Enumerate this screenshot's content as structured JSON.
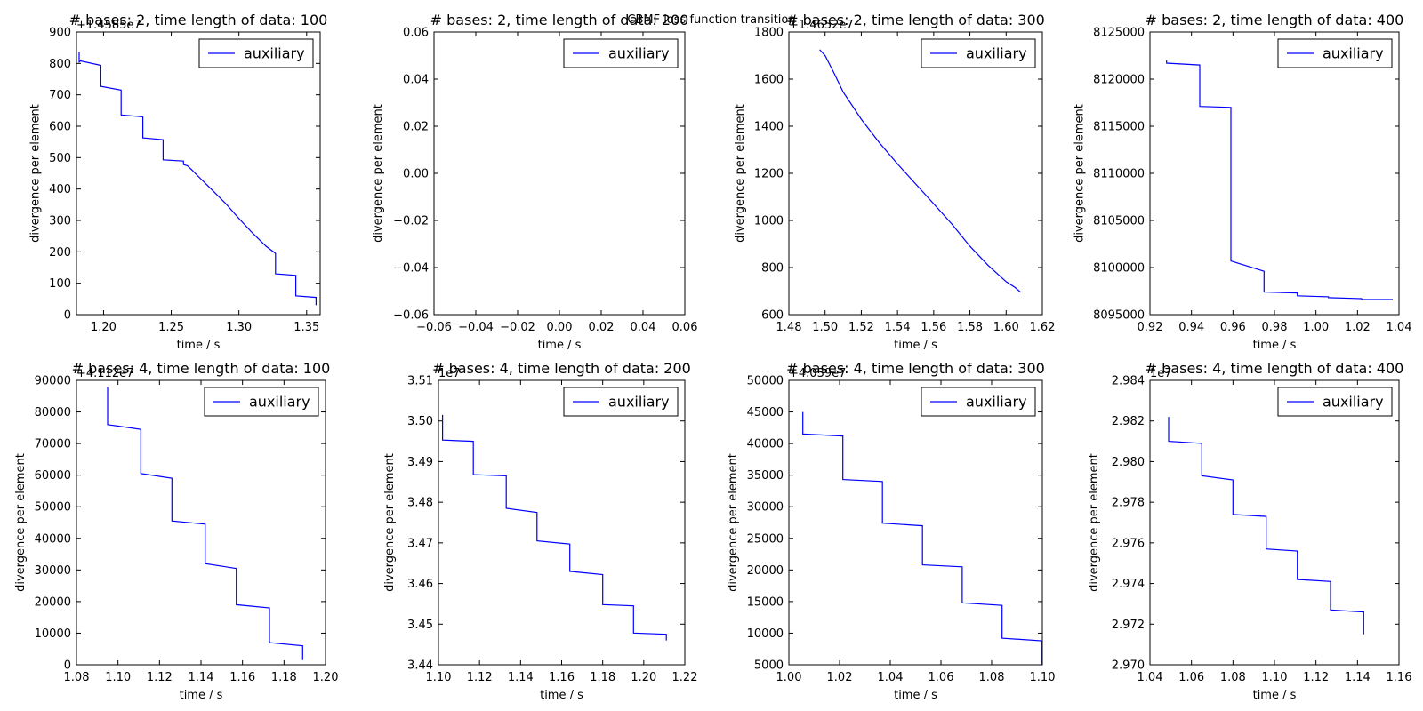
{
  "figure": {
    "suptitle": "CBMF loss function transition"
  },
  "chart_data": [
    {
      "type": "line",
      "title": "# bases: 2, time length of data: 100",
      "xlabel": "time / s",
      "ylabel": "divergence per element",
      "xlim": [
        1.18,
        1.36
      ],
      "ylim": [
        0,
        900
      ],
      "xticks": [
        1.2,
        1.25,
        1.3,
        1.35
      ],
      "xtick_labels": [
        "1.20",
        "1.25",
        "1.30",
        "1.35"
      ],
      "yticks": [
        0,
        100,
        200,
        300,
        400,
        500,
        600,
        700,
        800,
        900
      ],
      "ytick_labels": [
        "0",
        "100",
        "200",
        "300",
        "400",
        "500",
        "600",
        "700",
        "800",
        "900"
      ],
      "offset_text": "+1.4585e7",
      "legend": {
        "placement": "top-right"
      },
      "series": [
        {
          "name": "auxiliary",
          "color": "#0000ff",
          "x": [
            1.182,
            1.182,
            1.183,
            1.198,
            1.198,
            1.213,
            1.213,
            1.229,
            1.229,
            1.244,
            1.244,
            1.259,
            1.259,
            1.262,
            1.265,
            1.27,
            1.28,
            1.29,
            1.3,
            1.31,
            1.32,
            1.327,
            1.327,
            1.342,
            1.342,
            1.357,
            1.357
          ],
          "y": [
            835,
            805,
            808,
            794,
            727,
            715,
            636,
            630,
            563,
            557,
            493,
            489,
            478,
            474,
            462,
            440,
            398,
            355,
            306,
            260,
            218,
            195,
            130,
            125,
            60,
            55,
            30
          ]
        }
      ]
    },
    {
      "type": "line",
      "title": "# bases: 2, time length of data: 200",
      "xlabel": "time / s",
      "ylabel": "divergence per element",
      "xlim": [
        -0.06,
        0.06
      ],
      "ylim": [
        -0.06,
        0.06
      ],
      "xticks": [
        -0.06,
        -0.04,
        -0.02,
        0.0,
        0.02,
        0.04,
        0.06
      ],
      "xtick_labels": [
        "−0.06",
        "−0.04",
        "−0.02",
        "0.00",
        "0.02",
        "0.04",
        "0.06"
      ],
      "yticks": [
        -0.06,
        -0.04,
        -0.02,
        0.0,
        0.02,
        0.04,
        0.06
      ],
      "ytick_labels": [
        "−0.06",
        "−0.04",
        "−0.02",
        "0.00",
        "0.02",
        "0.04",
        "0.06"
      ],
      "offset_text": "",
      "legend": {
        "placement": "top-right"
      },
      "series": [
        {
          "name": "auxiliary",
          "color": "#0000ff",
          "x": [],
          "y": []
        }
      ]
    },
    {
      "type": "line",
      "title": "# bases: 2, time length of data: 300",
      "xlabel": "time / s",
      "ylabel": "divergence per element",
      "xlim": [
        1.48,
        1.62
      ],
      "ylim": [
        600,
        1800
      ],
      "xticks": [
        1.48,
        1.5,
        1.52,
        1.54,
        1.56,
        1.58,
        1.6,
        1.62
      ],
      "xtick_labels": [
        "1.48",
        "1.50",
        "1.52",
        "1.54",
        "1.56",
        "1.58",
        "1.60",
        "1.62"
      ],
      "yticks": [
        600,
        800,
        1000,
        1200,
        1400,
        1600,
        1800
      ],
      "ytick_labels": [
        "600",
        "800",
        "1000",
        "1200",
        "1400",
        "1600",
        "1800"
      ],
      "offset_text": "+1.4652e7",
      "legend": {
        "placement": "top-right"
      },
      "series": [
        {
          "name": "auxiliary",
          "color": "#0000ff",
          "x": [
            1.497,
            1.5,
            1.505,
            1.51,
            1.52,
            1.53,
            1.54,
            1.55,
            1.56,
            1.57,
            1.58,
            1.59,
            1.6,
            1.605,
            1.608
          ],
          "y": [
            1725,
            1700,
            1625,
            1545,
            1430,
            1330,
            1240,
            1155,
            1070,
            985,
            890,
            810,
            740,
            715,
            695
          ]
        }
      ]
    },
    {
      "type": "line",
      "title": "# bases: 2, time length of data: 400",
      "xlabel": "time / s",
      "ylabel": "divergence per element",
      "xlim": [
        0.92,
        1.04
      ],
      "ylim": [
        8095000,
        8125000
      ],
      "xticks": [
        0.92,
        0.94,
        0.96,
        0.98,
        1.0,
        1.02,
        1.04
      ],
      "xtick_labels": [
        "0.92",
        "0.94",
        "0.96",
        "0.98",
        "1.00",
        "1.02",
        "1.04"
      ],
      "yticks": [
        8095000,
        8100000,
        8105000,
        8110000,
        8115000,
        8120000,
        8125000
      ],
      "ytick_labels": [
        "8095000",
        "8100000",
        "8105000",
        "8110000",
        "8115000",
        "8120000",
        "8125000"
      ],
      "offset_text": "",
      "legend": {
        "placement": "top-right"
      },
      "series": [
        {
          "name": "auxiliary",
          "color": "#0000ff",
          "x": [
            0.928,
            0.928,
            0.944,
            0.944,
            0.959,
            0.959,
            0.975,
            0.975,
            0.991,
            0.991,
            1.006,
            1.006,
            1.022,
            1.022,
            1.037
          ],
          "y": [
            8122000,
            8121700,
            8121500,
            8117100,
            8117000,
            8100700,
            8099600,
            8097400,
            8097300,
            8097000,
            8096900,
            8096800,
            8096700,
            8096600,
            8096600
          ]
        }
      ]
    },
    {
      "type": "line",
      "title": "# bases: 4, time length of data: 100",
      "xlabel": "time / s",
      "ylabel": "divergence per element",
      "xlim": [
        1.08,
        1.2
      ],
      "ylim": [
        0,
        90000
      ],
      "xticks": [
        1.08,
        1.1,
        1.12,
        1.14,
        1.16,
        1.18,
        1.2
      ],
      "xtick_labels": [
        "1.08",
        "1.10",
        "1.12",
        "1.14",
        "1.16",
        "1.18",
        "1.20"
      ],
      "yticks": [
        0,
        10000,
        20000,
        30000,
        40000,
        50000,
        60000,
        70000,
        80000,
        90000
      ],
      "ytick_labels": [
        "0",
        "10000",
        "20000",
        "30000",
        "40000",
        "50000",
        "60000",
        "70000",
        "80000",
        "90000"
      ],
      "offset_text": "+4.112e7",
      "legend": {
        "placement": "top-right"
      },
      "series": [
        {
          "name": "auxiliary",
          "color": "#0000ff",
          "x": [
            1.095,
            1.095,
            1.111,
            1.111,
            1.126,
            1.126,
            1.142,
            1.142,
            1.157,
            1.157,
            1.173,
            1.173,
            1.189,
            1.189
          ],
          "y": [
            88000,
            76000,
            74500,
            60500,
            59000,
            45500,
            44500,
            32000,
            30500,
            19000,
            18000,
            7000,
            6000,
            1500
          ]
        }
      ]
    },
    {
      "type": "line",
      "title": "# bases: 4, time length of data: 200",
      "xlabel": "time / s",
      "ylabel": "divergence per element",
      "xlim": [
        1.1,
        1.22
      ],
      "ylim": [
        3.44,
        3.51
      ],
      "xticks": [
        1.1,
        1.12,
        1.14,
        1.16,
        1.18,
        1.2,
        1.22
      ],
      "xtick_labels": [
        "1.10",
        "1.12",
        "1.14",
        "1.16",
        "1.18",
        "1.20",
        "1.22"
      ],
      "yticks": [
        3.44,
        3.45,
        3.46,
        3.47,
        3.48,
        3.49,
        3.5,
        3.51
      ],
      "ytick_labels": [
        "3.44",
        "3.45",
        "3.46",
        "3.47",
        "3.48",
        "3.49",
        "3.50",
        "3.51"
      ],
      "offset_text": "1e7",
      "legend": {
        "placement": "top-right"
      },
      "series": [
        {
          "name": "auxiliary",
          "color": "#0000ff",
          "x": [
            1.102,
            1.102,
            1.117,
            1.117,
            1.133,
            1.133,
            1.148,
            1.148,
            1.164,
            1.164,
            1.18,
            1.18,
            1.195,
            1.195,
            1.211,
            1.211
          ],
          "y": [
            3.5015,
            3.4953,
            3.495,
            3.4868,
            3.4865,
            3.4785,
            3.4775,
            3.4705,
            3.4697,
            3.463,
            3.4622,
            3.4548,
            3.4545,
            3.4478,
            3.4475,
            3.446
          ]
        }
      ]
    },
    {
      "type": "line",
      "title": "# bases: 4, time length of data: 300",
      "xlabel": "time / s",
      "ylabel": "divergence per element",
      "xlim": [
        1.0,
        1.1
      ],
      "ylim": [
        5000,
        50000
      ],
      "xticks": [
        1.0,
        1.02,
        1.04,
        1.06,
        1.08,
        1.1
      ],
      "xtick_labels": [
        "1.00",
        "1.02",
        "1.04",
        "1.06",
        "1.08",
        "1.10"
      ],
      "yticks": [
        5000,
        10000,
        15000,
        20000,
        25000,
        30000,
        35000,
        40000,
        45000,
        50000
      ],
      "ytick_labels": [
        "5000",
        "10000",
        "15000",
        "20000",
        "25000",
        "30000",
        "35000",
        "40000",
        "45000",
        "50000"
      ],
      "offset_text": "+4.039e7",
      "legend": {
        "placement": "top-right"
      },
      "series": [
        {
          "name": "auxiliary",
          "color": "#0000ff",
          "x": [
            1.0055,
            1.0055,
            1.0213,
            1.0213,
            1.0369,
            1.0369,
            1.0527,
            1.0527,
            1.0684,
            1.0684,
            1.0841,
            1.0841,
            1.0998,
            1.0998
          ],
          "y": [
            45000,
            41500,
            41200,
            34300,
            34000,
            27400,
            27000,
            20800,
            20500,
            14800,
            14400,
            9200,
            8800,
            5000
          ]
        }
      ]
    },
    {
      "type": "line",
      "title": "# bases: 4, time length of data: 400",
      "xlabel": "time / s",
      "ylabel": "divergence per element",
      "xlim": [
        1.04,
        1.16
      ],
      "ylim": [
        2.97,
        2.984
      ],
      "xticks": [
        1.04,
        1.06,
        1.08,
        1.1,
        1.12,
        1.14,
        1.16
      ],
      "xtick_labels": [
        "1.04",
        "1.06",
        "1.08",
        "1.10",
        "1.12",
        "1.14",
        "1.16"
      ],
      "yticks": [
        2.97,
        2.972,
        2.974,
        2.976,
        2.978,
        2.98,
        2.982,
        2.984
      ],
      "ytick_labels": [
        "2.970",
        "2.972",
        "2.974",
        "2.976",
        "2.978",
        "2.980",
        "2.982",
        "2.984"
      ],
      "offset_text": "1e7",
      "legend": {
        "placement": "top-right"
      },
      "series": [
        {
          "name": "auxiliary",
          "color": "#0000ff",
          "x": [
            1.049,
            1.049,
            1.065,
            1.065,
            1.08,
            1.08,
            1.096,
            1.096,
            1.111,
            1.111,
            1.127,
            1.127,
            1.143,
            1.143
          ],
          "y": [
            2.9822,
            2.981,
            2.9809,
            2.9793,
            2.9791,
            2.9774,
            2.9773,
            2.9757,
            2.9756,
            2.9742,
            2.9741,
            2.9727,
            2.9726,
            2.9715
          ]
        }
      ]
    }
  ]
}
